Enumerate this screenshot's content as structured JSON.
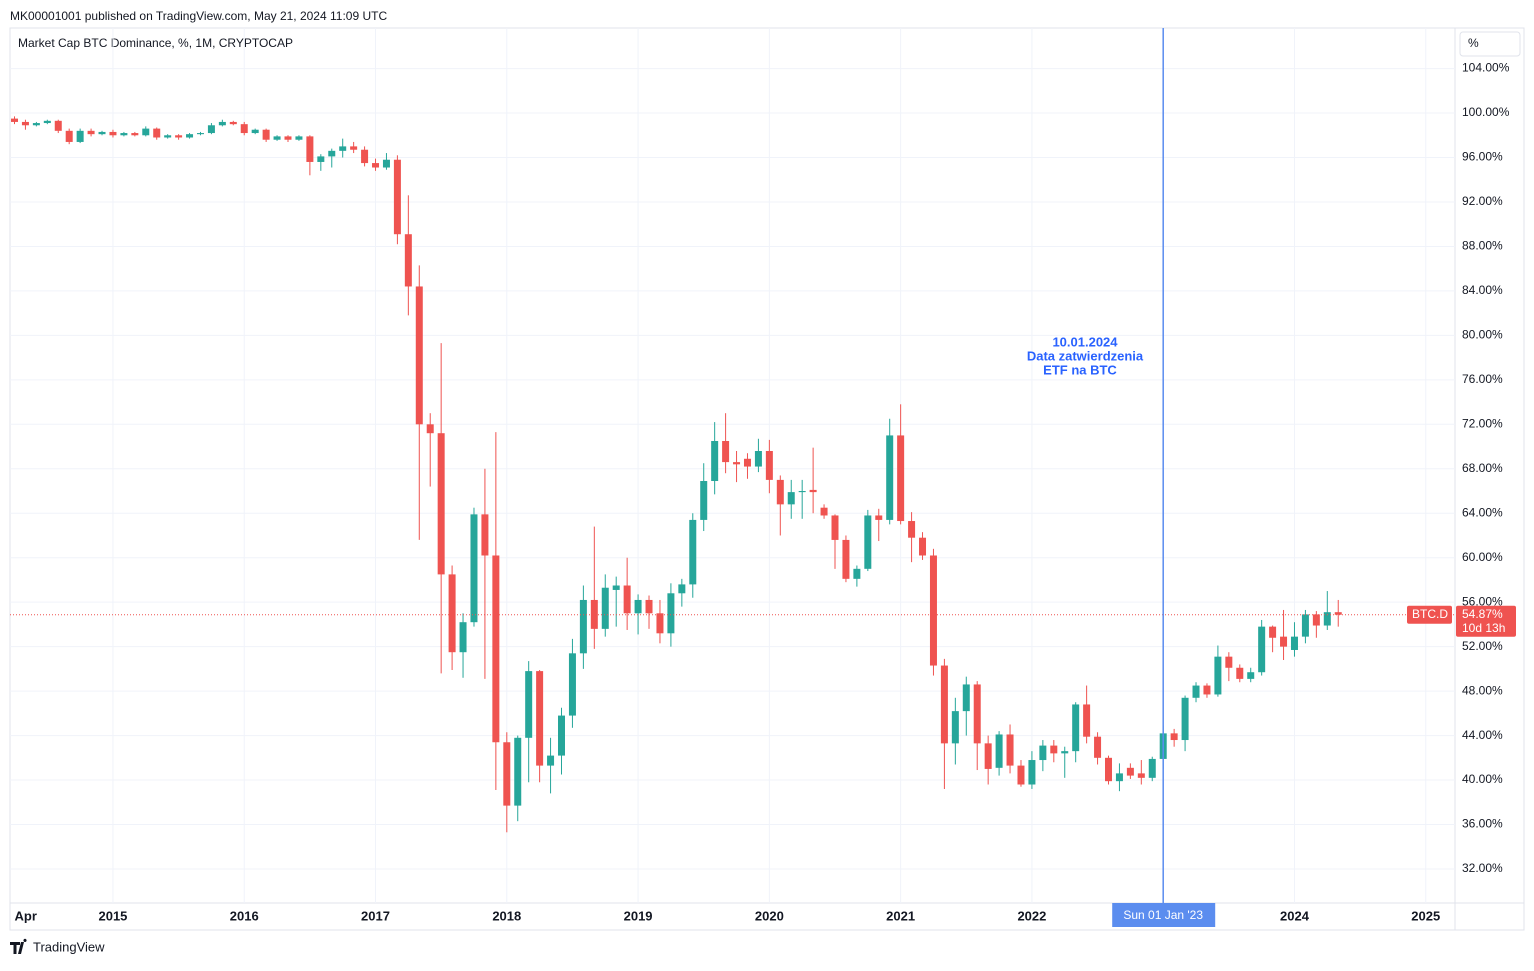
{
  "header": "MK00001001 published on TradingView.com, May 21, 2024 11:09 UTC",
  "footer": "TradingView",
  "chart_data": {
    "type": "candlestick",
    "title": "Market Cap BTC Dominance, %, 1M, CRYPTOCAP",
    "scale_unit": "%",
    "x": [
      "2014-04",
      "2014-05",
      "2014-06",
      "2014-07",
      "2014-08",
      "2014-09",
      "2014-10",
      "2014-11",
      "2014-12",
      "2015-01",
      "2015-02",
      "2015-03",
      "2015-04",
      "2015-05",
      "2015-06",
      "2015-07",
      "2015-08",
      "2015-09",
      "2015-10",
      "2015-11",
      "2015-12",
      "2016-01",
      "2016-02",
      "2016-03",
      "2016-04",
      "2016-05",
      "2016-06",
      "2016-07",
      "2016-08",
      "2016-09",
      "2016-10",
      "2016-11",
      "2016-12",
      "2017-01",
      "2017-02",
      "2017-03",
      "2017-04",
      "2017-05",
      "2017-06",
      "2017-07",
      "2017-08",
      "2017-09",
      "2017-10",
      "2017-11",
      "2017-12",
      "2018-01",
      "2018-02",
      "2018-03",
      "2018-04",
      "2018-05",
      "2018-06",
      "2018-07",
      "2018-08",
      "2018-09",
      "2018-10",
      "2018-11",
      "2018-12",
      "2019-01",
      "2019-02",
      "2019-03",
      "2019-04",
      "2019-05",
      "2019-06",
      "2019-07",
      "2019-08",
      "2019-09",
      "2019-10",
      "2019-11",
      "2019-12",
      "2020-01",
      "2020-02",
      "2020-03",
      "2020-04",
      "2020-05",
      "2020-06",
      "2020-07",
      "2020-08",
      "2020-09",
      "2020-10",
      "2020-11",
      "2020-12",
      "2021-01",
      "2021-02",
      "2021-03",
      "2021-04",
      "2021-05",
      "2021-06",
      "2021-07",
      "2021-08",
      "2021-09",
      "2021-10",
      "2021-11",
      "2021-12",
      "2022-01",
      "2022-02",
      "2022-03",
      "2022-04",
      "2022-05",
      "2022-06",
      "2022-07",
      "2022-08",
      "2022-09",
      "2022-10",
      "2022-11",
      "2022-12",
      "2023-01",
      "2023-02",
      "2023-03",
      "2023-04",
      "2023-05",
      "2023-06",
      "2023-07",
      "2023-08",
      "2023-09",
      "2023-10",
      "2023-11",
      "2023-12",
      "2024-01",
      "2024-02",
      "2024-03",
      "2024-04",
      "2024-05"
    ],
    "series": [
      {
        "name": "BTC.D",
        "up_color": "#26a69a",
        "down_color": "#ef5350",
        "open": [
          99.5,
          99.2,
          98.9,
          99.1,
          99.3,
          98.4,
          97.4,
          98.4,
          98.1,
          98.3,
          98.0,
          98.2,
          98.0,
          98.6,
          97.8,
          98.0,
          97.8,
          98.1,
          98.2,
          98.9,
          99.2,
          99.0,
          98.2,
          98.5,
          97.6,
          97.9,
          97.6,
          97.9,
          95.6,
          96.1,
          96.6,
          97.0,
          96.7,
          95.5,
          95.1,
          95.8,
          89.1,
          84.4,
          72.0,
          71.2,
          58.5,
          51.5,
          54.2,
          63.9,
          60.2,
          43.4,
          37.7,
          43.8,
          49.8,
          41.3,
          42.2,
          45.8,
          51.4,
          56.2,
          53.6,
          57.1,
          57.5,
          55.0,
          56.2,
          55.0,
          53.2,
          56.8,
          57.6,
          63.4,
          66.9,
          70.5,
          68.6,
          68.9,
          68.2,
          69.6,
          67.0,
          64.8,
          65.9,
          66.1,
          64.5,
          63.8,
          61.6,
          58.1,
          59.0,
          63.8,
          63.4,
          71.0,
          63.3,
          61.8,
          60.2,
          50.3,
          43.3,
          46.2,
          48.6,
          43.3,
          41.1,
          44.1,
          41.3,
          39.6,
          41.8,
          43.1,
          42.4,
          42.6,
          46.8,
          43.9,
          42.0,
          39.9,
          41.1,
          40.6,
          40.2,
          41.9,
          44.2,
          43.6,
          47.4,
          48.5,
          47.7,
          51.1,
          50.1,
          49.1,
          49.7,
          53.8,
          52.9,
          51.7,
          52.9,
          54.9,
          53.9,
          55.1
        ],
        "high": [
          99.7,
          99.4,
          99.2,
          99.4,
          99.4,
          98.6,
          98.6,
          98.6,
          98.4,
          98.5,
          98.3,
          98.3,
          98.8,
          98.7,
          98.1,
          98.1,
          98.2,
          98.3,
          99.1,
          99.4,
          99.3,
          99.2,
          98.6,
          98.6,
          98.0,
          98.0,
          98.0,
          98.0,
          96.3,
          96.8,
          97.7,
          97.4,
          97.0,
          95.9,
          96.4,
          96.2,
          92.6,
          86.3,
          73.0,
          79.3,
          59.3,
          55.0,
          64.5,
          68.0,
          71.3,
          44.3,
          44.0,
          50.7,
          49.9,
          43.8,
          46.5,
          52.7,
          57.5,
          62.8,
          58.5,
          58.3,
          60.0,
          56.7,
          56.6,
          56.2,
          57.7,
          58.1,
          64.0,
          68.5,
          72.2,
          73.0,
          69.6,
          69.4,
          70.7,
          70.6,
          67.4,
          67.0,
          67.0,
          69.9,
          64.8,
          63.9,
          62.0,
          59.3,
          64.3,
          64.4,
          72.5,
          73.8,
          64.1,
          62.3,
          60.8,
          50.9,
          47.4,
          49.3,
          48.9,
          44.0,
          44.4,
          45.0,
          41.8,
          42.6,
          43.6,
          43.6,
          43.0,
          47.0,
          48.5,
          44.3,
          42.2,
          41.5,
          41.5,
          41.8,
          42.1,
          44.9,
          44.6,
          47.6,
          48.8,
          48.7,
          52.1,
          51.5,
          50.4,
          50.1,
          54.4,
          53.9,
          55.3,
          54.2,
          55.3,
          55.2,
          57.0,
          56.2
        ],
        "low": [
          99.0,
          98.5,
          98.8,
          99.0,
          98.2,
          97.2,
          97.3,
          97.9,
          98.0,
          97.8,
          97.9,
          97.9,
          97.9,
          97.6,
          97.7,
          97.6,
          97.7,
          98.0,
          98.1,
          98.8,
          98.9,
          98.0,
          98.1,
          97.4,
          97.5,
          97.4,
          97.5,
          94.4,
          94.8,
          95.1,
          96.0,
          96.4,
          95.2,
          94.8,
          94.9,
          88.2,
          81.8,
          61.6,
          66.4,
          49.6,
          49.9,
          49.2,
          53.8,
          49.1,
          39.1,
          35.3,
          36.3,
          39.8,
          39.8,
          38.8,
          40.5,
          44.7,
          50.0,
          51.8,
          52.9,
          53.8,
          53.5,
          53.1,
          53.6,
          52.3,
          52.0,
          55.6,
          56.4,
          62.4,
          65.7,
          67.6,
          66.8,
          67.1,
          67.7,
          65.8,
          62.0,
          63.5,
          63.5,
          64.0,
          63.5,
          59.0,
          57.8,
          57.4,
          58.8,
          61.5,
          63.0,
          63.0,
          59.6,
          59.8,
          49.4,
          39.2,
          41.4,
          44.0,
          40.9,
          39.6,
          40.4,
          40.6,
          39.4,
          39.2,
          40.8,
          41.6,
          40.2,
          41.6,
          43.3,
          41.4,
          39.6,
          39.0,
          40.1,
          39.6,
          39.9,
          41.0,
          43.0,
          42.6,
          47.0,
          47.4,
          47.5,
          48.9,
          48.8,
          48.8,
          49.4,
          51.5,
          50.8,
          51.1,
          52.3,
          52.8,
          53.5,
          53.8
        ],
        "close": [
          99.2,
          98.9,
          99.1,
          99.3,
          98.4,
          97.4,
          98.4,
          98.1,
          98.3,
          98.0,
          98.2,
          98.0,
          98.6,
          97.8,
          98.0,
          97.8,
          98.1,
          98.2,
          98.9,
          99.2,
          99.0,
          98.2,
          98.5,
          97.6,
          97.9,
          97.6,
          97.9,
          95.6,
          96.1,
          96.6,
          97.0,
          96.7,
          95.5,
          95.1,
          95.8,
          89.1,
          84.4,
          72.0,
          71.2,
          58.5,
          51.5,
          54.2,
          63.9,
          60.2,
          43.4,
          37.7,
          43.8,
          49.8,
          41.3,
          42.2,
          45.8,
          51.4,
          56.2,
          53.6,
          57.3,
          57.5,
          55.0,
          56.2,
          55.0,
          53.2,
          56.8,
          57.6,
          63.4,
          66.9,
          70.5,
          68.6,
          68.4,
          68.2,
          69.6,
          67.0,
          64.8,
          65.9,
          66.0,
          65.9,
          63.8,
          61.6,
          58.1,
          59.0,
          63.8,
          63.4,
          71.0,
          63.3,
          61.8,
          60.2,
          50.3,
          43.3,
          46.2,
          48.6,
          43.3,
          41.0,
          44.1,
          41.3,
          39.6,
          41.8,
          43.1,
          42.4,
          42.6,
          46.8,
          43.9,
          42.0,
          39.9,
          40.6,
          40.4,
          40.2,
          41.9,
          44.2,
          43.6,
          47.4,
          48.5,
          47.7,
          51.1,
          50.1,
          49.1,
          49.7,
          53.8,
          52.8,
          52.0,
          52.9,
          54.9,
          53.9,
          55.1,
          54.87
        ]
      }
    ],
    "ylim": [
      28.94,
      107.65
    ],
    "yticks": [
      {
        "value": 32,
        "label": "32.00%"
      },
      {
        "value": 36,
        "label": "36.00%"
      },
      {
        "value": 40,
        "label": "40.00%"
      },
      {
        "value": 44,
        "label": "44.00%"
      },
      {
        "value": 48,
        "label": "48.00%"
      },
      {
        "value": 52,
        "label": "52.00%"
      },
      {
        "value": 56,
        "label": "56.00%"
      },
      {
        "value": 60,
        "label": "60.00%"
      },
      {
        "value": 64,
        "label": "64.00%"
      },
      {
        "value": 68,
        "label": "68.00%"
      },
      {
        "value": 72,
        "label": "72.00%"
      },
      {
        "value": 76,
        "label": "76.00%"
      },
      {
        "value": 80,
        "label": "80.00%"
      },
      {
        "value": 84,
        "label": "84.00%"
      },
      {
        "value": 88,
        "label": "88.00%"
      },
      {
        "value": 92,
        "label": "92.00%"
      },
      {
        "value": 96,
        "label": "96.00%"
      },
      {
        "value": 100,
        "label": "100.00%"
      },
      {
        "value": 104,
        "label": "104.00%"
      }
    ],
    "xticks": [
      {
        "value": "2014-04",
        "label": "Apr"
      },
      {
        "value": "2015-01",
        "label": "2015"
      },
      {
        "value": "2016-01",
        "label": "2016"
      },
      {
        "value": "2017-01",
        "label": "2017"
      },
      {
        "value": "2018-01",
        "label": "2018"
      },
      {
        "value": "2019-01",
        "label": "2019"
      },
      {
        "value": "2020-01",
        "label": "2020"
      },
      {
        "value": "2021-01",
        "label": "2021"
      },
      {
        "value": "2022-01",
        "label": "2022"
      },
      {
        "value": "2024-01",
        "label": "2024"
      },
      {
        "value": "2025-01",
        "label": "2025"
      }
    ],
    "grid": true,
    "price_label": {
      "name": "BTC.D",
      "value": 54.87,
      "label": "54.87%",
      "countdown": "10d 13h",
      "color": "#ef5350"
    },
    "vline": {
      "x": "2023-01",
      "label": "Sun 01 Jan '23",
      "color": "#5b8def"
    },
    "annotation": {
      "lines": [
        "10.01.2024",
        "Data zatwierdzenia",
        "ETF na BTC"
      ],
      "color": "#2962ff"
    }
  }
}
